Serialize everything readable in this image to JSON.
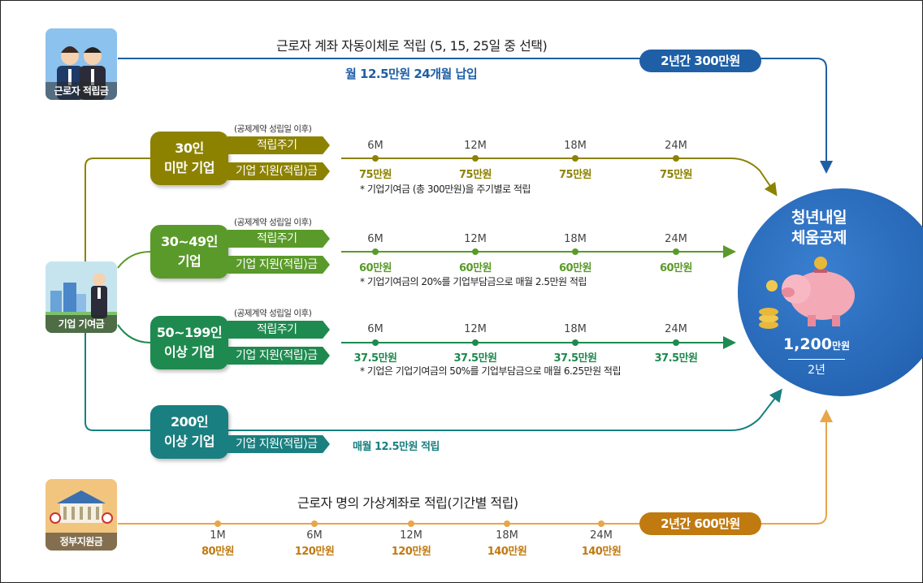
{
  "worker": {
    "icon_label": "근로자 적립금",
    "title": "근로자 계좌 자동이체로 적립 (5, 15, 25일 중 선택)",
    "subtitle": "월 12.5만원 24개월 납입",
    "pill": "2년간 300만원"
  },
  "company_icon_label": "기업 기여금",
  "government": {
    "icon_label": "정부지원금",
    "title": "근로자 명의 가상계좌로 적립(기간별 적립)",
    "pill": "2년간 600만원",
    "ticks": [
      "1M",
      "6M",
      "12M",
      "18M",
      "24M"
    ],
    "amounts": [
      "80만원",
      "120만원",
      "120만원",
      "140만원",
      "140만원"
    ]
  },
  "tiers": [
    {
      "size_line1": "30인",
      "size_line2": "미만 기업",
      "contract_note": "(공제계약 성립일 이후)",
      "cycle_label": "적립주기",
      "support_label": "기업 지원(적립)금",
      "ticks": [
        "6M",
        "12M",
        "18M",
        "24M"
      ],
      "amounts": [
        "75만원",
        "75만원",
        "75만원",
        "75만원"
      ],
      "note": "* 기업기여금 (총 300만원)을 주기별로 적립"
    },
    {
      "size_line1": "30~49인",
      "size_line2": "기업",
      "contract_note": "(공제계약 성립일 이후)",
      "cycle_label": "적립주기",
      "support_label": "기업 지원(적립)금",
      "ticks": [
        "6M",
        "12M",
        "18M",
        "24M"
      ],
      "amounts": [
        "60만원",
        "60만원",
        "60만원",
        "60만원"
      ],
      "note": "* 기업기여금의 20%를 기업부담금으로 매월 2.5만원 적립"
    },
    {
      "size_line1": "50~199인",
      "size_line2": "이상 기업",
      "contract_note": "(공제계약 성립일 이후)",
      "cycle_label": "적립주기",
      "support_label": "기업 지원(적립)금",
      "ticks": [
        "6M",
        "12M",
        "18M",
        "24M"
      ],
      "amounts": [
        "37.5만원",
        "37.5만원",
        "37.5만원",
        "37.5만원"
      ],
      "note": "* 기업은 기업기여금의 50%를 기업부담금으로 매월 6.25만원 적립"
    },
    {
      "size_line1": "200인",
      "size_line2": "이상 기업",
      "support_label": "기업 지원(적립)금",
      "monthly": "매월 12.5만원 적립"
    }
  ],
  "result": {
    "title_line1": "청년내일",
    "title_line2": "체움공제",
    "amount": "1,200",
    "unit": "만원",
    "duration": "2년"
  },
  "colors": {
    "worker_blue": "#1f5fa6",
    "tier1_olive": "#8c8200",
    "tier2_green": "#5a9a2a",
    "tier3_green": "#1f8a4f",
    "tier4_teal": "#1a7f80",
    "gov_orange": "#c07a10",
    "gov_line": "#e7a64a"
  }
}
